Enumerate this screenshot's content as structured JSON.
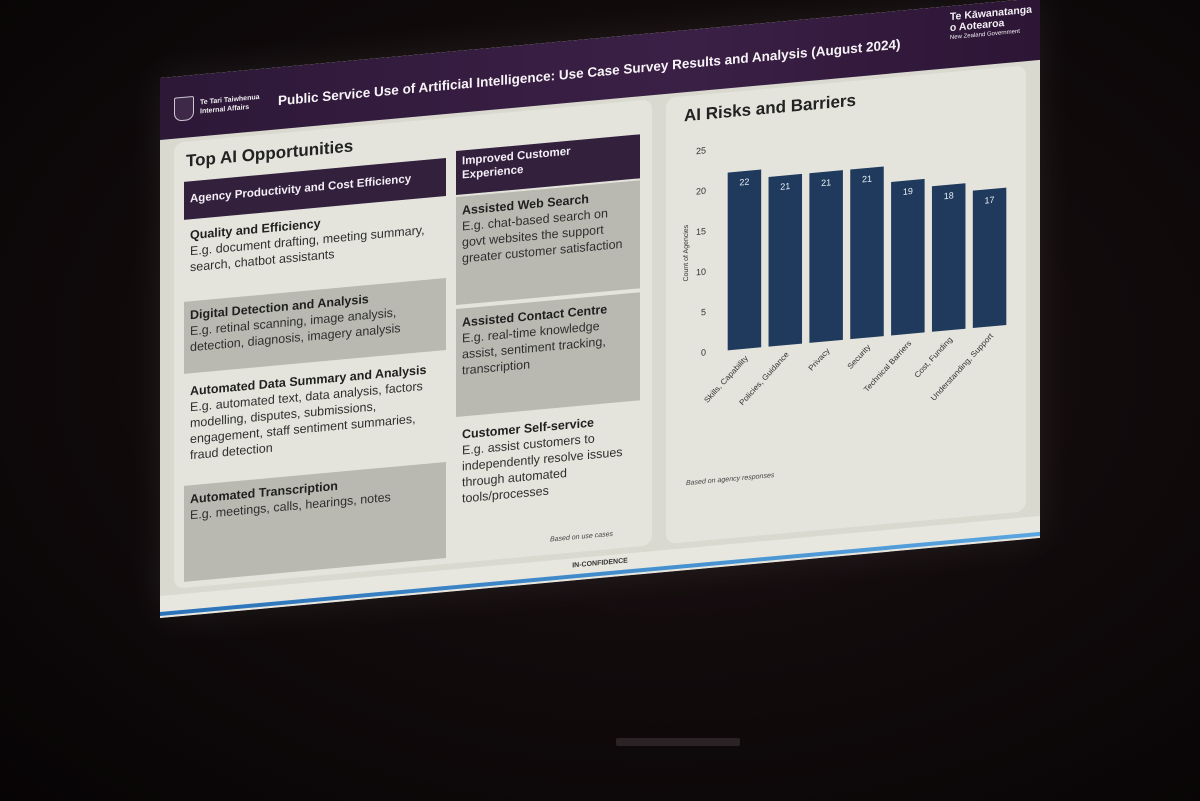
{
  "header": {
    "org_line1": "Te Tari Taiwhenua",
    "org_line2": "Internal Affairs",
    "title": "Public Service Use of Artificial Intelligence: Use Case Survey Results and Analysis (August 2024)",
    "govt_line1": "Te Kāwanatanga",
    "govt_line2": "o Aotearoa",
    "govt_line3": "New Zealand Government"
  },
  "opportunities": {
    "title": "Top AI Opportunities",
    "col1_heading": "Agency Productivity and Cost Efficiency",
    "col2_heading": "Improved Customer Experience",
    "col1_items": [
      {
        "title": "Quality and Efficiency",
        "desc": "E.g. document drafting, meeting summary, search, chatbot assistants"
      },
      {
        "title": "Digital Detection and Analysis",
        "desc": "E.g. retinal scanning, image analysis, detection, diagnosis, imagery analysis"
      },
      {
        "title": "Automated Data Summary and Analysis",
        "desc": "E.g. automated text, data analysis, factors modelling, disputes, submissions, engagement, staff sentiment summaries, fraud detection"
      },
      {
        "title": "Automated Transcription",
        "desc": "E.g. meetings, calls, hearings, notes"
      }
    ],
    "col2_items": [
      {
        "title": "Assisted Web Search",
        "desc": "E.g. chat-based search on govt websites the support greater customer satisfaction"
      },
      {
        "title": "Assisted Contact Centre",
        "desc": "E.g. real-time knowledge assist, sentiment tracking, transcription"
      },
      {
        "title": "Customer Self-service",
        "desc": "E.g. assist customers to independently resolve issues through automated tools/processes"
      }
    ],
    "note": "Based on use cases"
  },
  "chart_data": {
    "type": "bar",
    "title": "AI Risks and Barriers",
    "categories": [
      "Skills, Capability",
      "Policies, Guidance",
      "Privacy",
      "Security",
      "Technical Barriers",
      "Cost, Funding",
      "Understanding, Support"
    ],
    "values": [
      22,
      21,
      21,
      21,
      19,
      18,
      17
    ],
    "ylabel": "Count of Agencies",
    "xlabel": "",
    "ylim": [
      0,
      25
    ],
    "yticks": [
      0,
      5,
      10,
      15,
      20,
      25
    ],
    "note": "Based on agency responses",
    "bar_color": "#1f3a5c"
  },
  "footer": {
    "classification": "IN-CONFIDENCE"
  }
}
